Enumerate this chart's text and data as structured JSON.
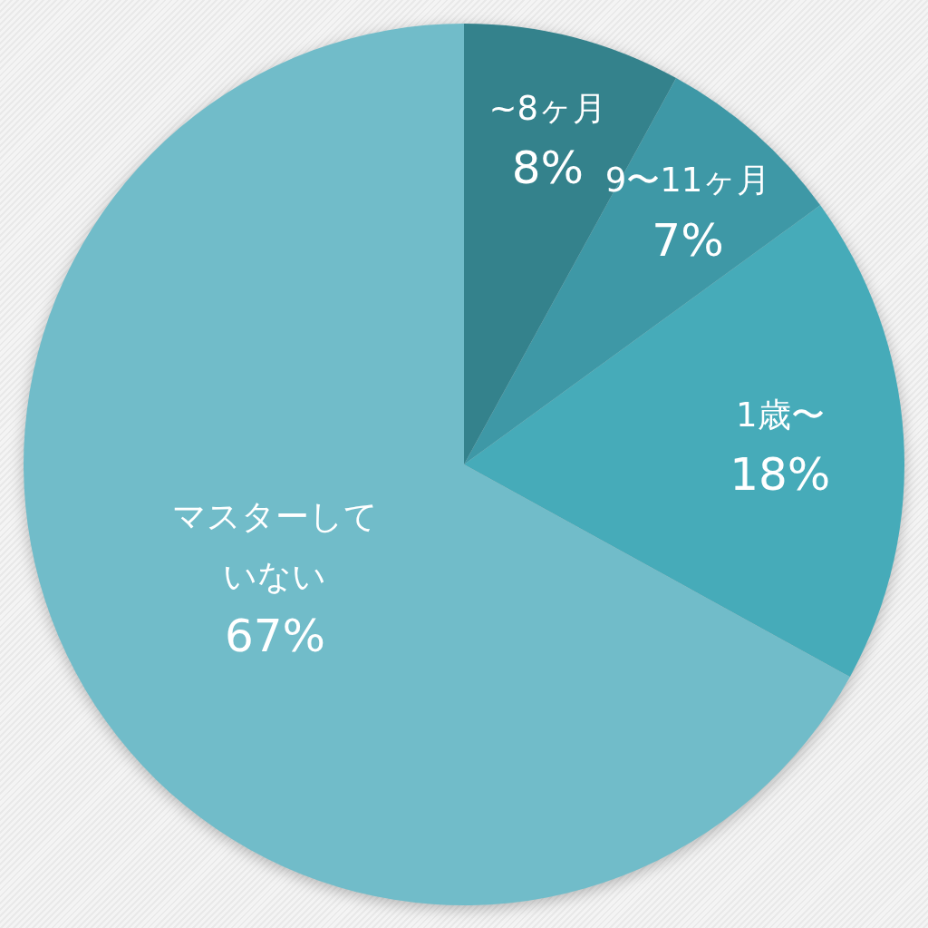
{
  "chart_data": {
    "type": "pie",
    "categories": [
      "~8ヶ月",
      "9〜11ヶ月",
      "1歳〜",
      "マスターしていない"
    ],
    "values": [
      8,
      7,
      18,
      67
    ],
    "colors": [
      "#34828c",
      "#3e98a6",
      "#46abb9",
      "#71bcc9"
    ],
    "value_labels": [
      "8%",
      "7%",
      "18%",
      "67%"
    ]
  }
}
